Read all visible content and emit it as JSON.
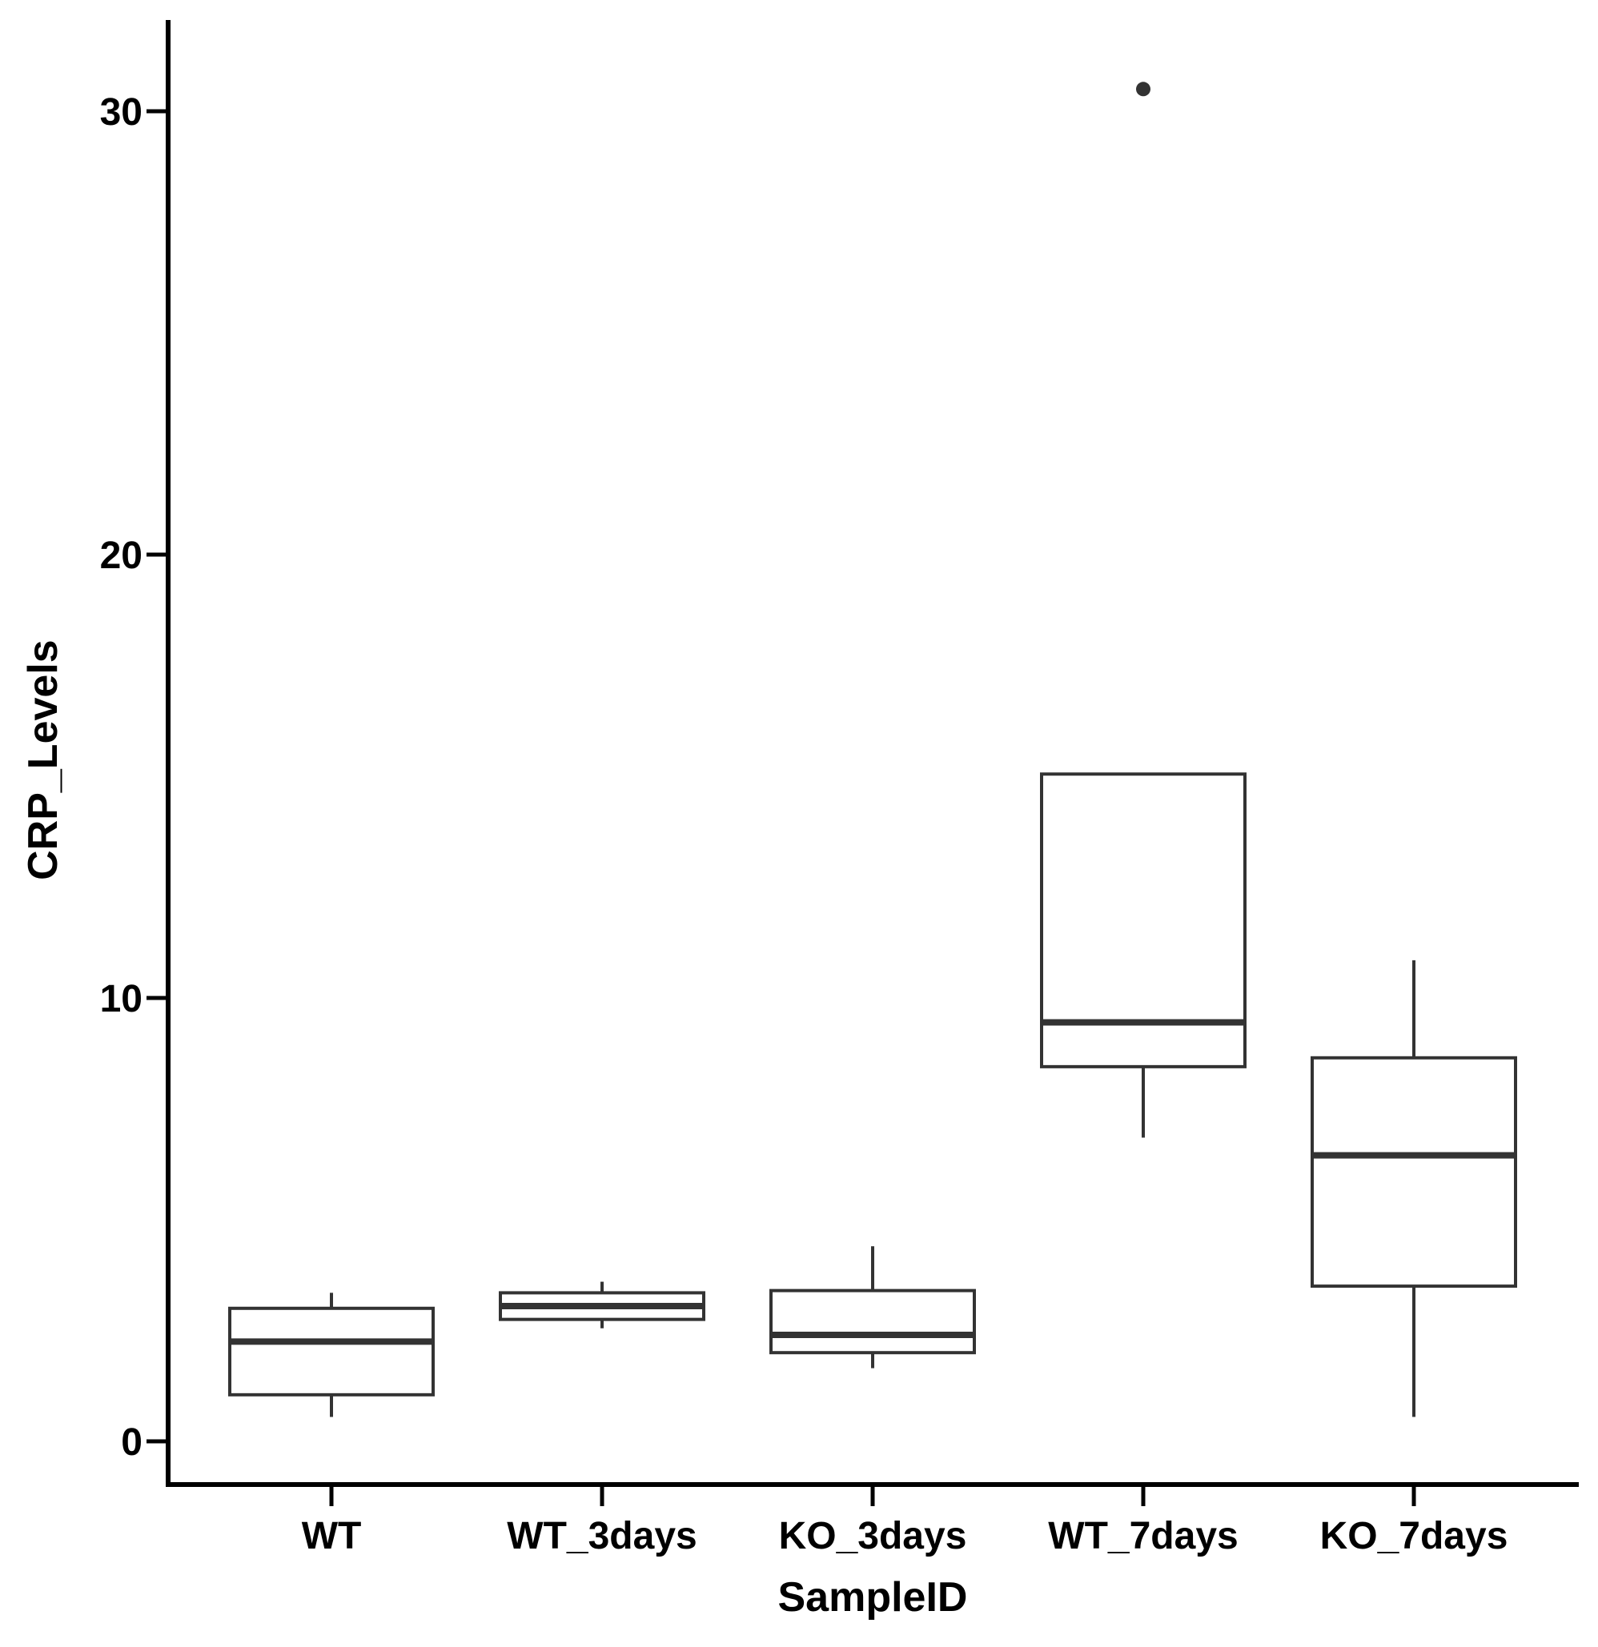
{
  "chart_data": {
    "type": "box",
    "xlabel": "SampleID",
    "ylabel": "CRP_Levels",
    "categories": [
      "WT",
      "WT_3days",
      "KO_3days",
      "WT_7days",
      "KO_7days"
    ],
    "ylim": [
      -1,
      33
    ],
    "yticks": [
      0,
      10,
      20,
      30
    ],
    "ytick_labels": [
      "0",
      "10",
      "20",
      "30"
    ],
    "grid": false,
    "boxes": [
      {
        "category": "WT",
        "whisker_low": 0.55,
        "q1": 1.05,
        "median": 2.25,
        "q3": 3.0,
        "whisker_high": 3.35,
        "outliers": []
      },
      {
        "category": "WT_3days",
        "whisker_low": 2.55,
        "q1": 2.75,
        "median": 3.05,
        "q3": 3.35,
        "whisker_high": 3.6,
        "outliers": []
      },
      {
        "category": "KO_3days",
        "whisker_low": 1.65,
        "q1": 2.0,
        "median": 2.4,
        "q3": 3.4,
        "whisker_high": 4.4,
        "outliers": []
      },
      {
        "category": "WT_7days",
        "whisker_low": 6.85,
        "q1": 8.45,
        "median": 9.45,
        "q3": 15.05,
        "whisker_high": 15.05,
        "outliers": [
          30.5
        ]
      },
      {
        "category": "KO_7days",
        "whisker_low": 0.55,
        "q1": 3.5,
        "median": 6.45,
        "q3": 8.65,
        "whisker_high": 10.85,
        "outliers": []
      }
    ],
    "colors": {
      "box_stroke": "#333333",
      "box_fill": "#ffffff",
      "axis": "#000000",
      "outlier": "#333333"
    }
  }
}
